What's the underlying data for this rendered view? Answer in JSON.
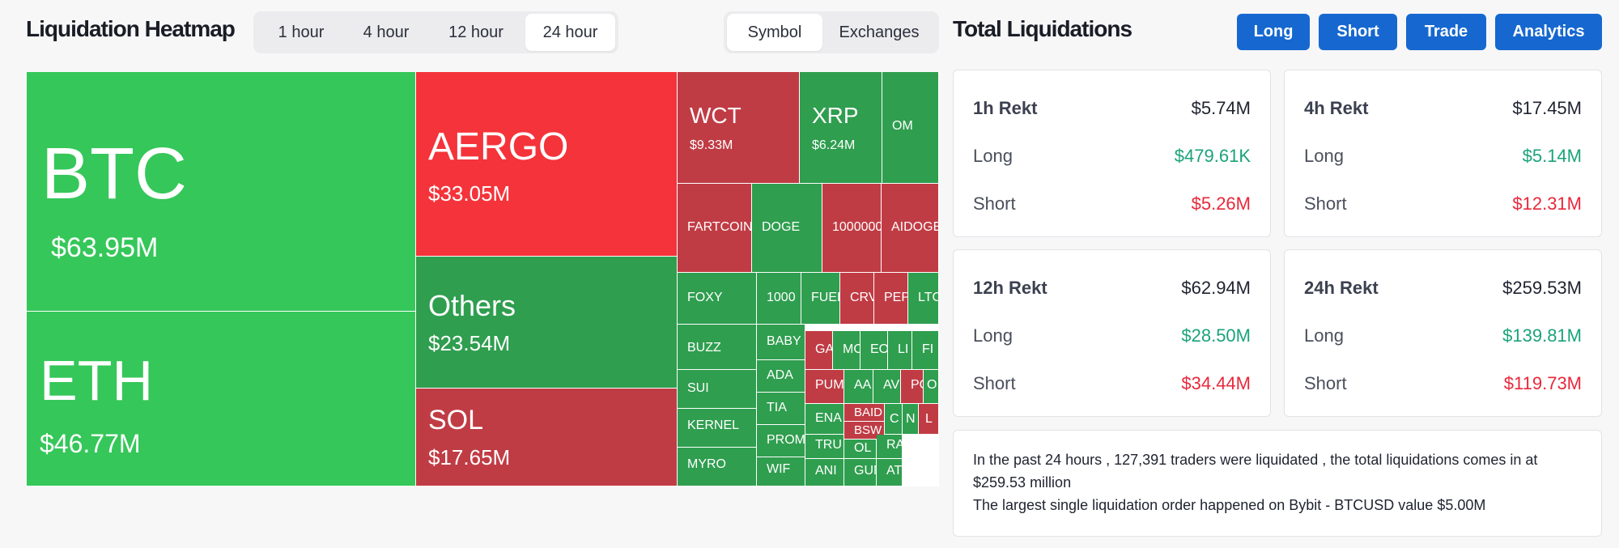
{
  "header": {
    "title": "Liquidation Heatmap"
  },
  "time_tabs": [
    {
      "label": "1 hour",
      "active": false
    },
    {
      "label": "4 hour",
      "active": false
    },
    {
      "label": "12 hour",
      "active": false
    },
    {
      "label": "24 hour",
      "active": true
    }
  ],
  "view_tabs": [
    {
      "label": "Symbol",
      "active": true
    },
    {
      "label": "Exchanges",
      "active": false
    }
  ],
  "colors": {
    "bright_green": "#35c759",
    "green": "#2f9e4f",
    "bright_red": "#f5333a",
    "red": "#c03c45",
    "button_blue": "#1668d0"
  },
  "heatmap": {
    "tiles": [
      {
        "name": "BTC",
        "value": "$63.95M",
        "color": "bright_green"
      },
      {
        "name": "ETH",
        "value": "$46.77M",
        "color": "bright_green"
      },
      {
        "name": "AERGO",
        "value": "$33.05M",
        "color": "bright_red"
      },
      {
        "name": "Others",
        "value": "$23.54M",
        "color": "green"
      },
      {
        "name": "SOL",
        "value": "$17.65M",
        "color": "red"
      },
      {
        "name": "WCT",
        "value": "$9.33M",
        "color": "red"
      },
      {
        "name": "XRP",
        "value": "$6.24M",
        "color": "green"
      },
      {
        "name": "OM",
        "value": "",
        "color": "green"
      },
      {
        "name": "FARTCOIN",
        "value": "",
        "color": "red"
      },
      {
        "name": "DOGE",
        "value": "",
        "color": "green"
      },
      {
        "name": "1000000",
        "value": "",
        "color": "red"
      },
      {
        "name": "AIDOGE",
        "value": "",
        "color": "red"
      },
      {
        "name": "FOXY",
        "value": "",
        "color": "green"
      },
      {
        "name": "1000",
        "value": "",
        "color": "green"
      },
      {
        "name": "FUEL",
        "value": "",
        "color": "green"
      },
      {
        "name": "CRV",
        "value": "",
        "color": "red"
      },
      {
        "name": "PEPE",
        "value": "",
        "color": "red"
      },
      {
        "name": "LTC",
        "value": "",
        "color": "green"
      },
      {
        "name": "BUZZ",
        "value": "",
        "color": "green"
      },
      {
        "name": "BABY",
        "value": "",
        "color": "green"
      },
      {
        "name": "GA",
        "value": "",
        "color": "red"
      },
      {
        "name": "MO",
        "value": "",
        "color": "green"
      },
      {
        "name": "EO",
        "value": "",
        "color": "green"
      },
      {
        "name": "LI",
        "value": "",
        "color": "green"
      },
      {
        "name": "FI",
        "value": "",
        "color": "green"
      },
      {
        "name": "ADA",
        "value": "",
        "color": "green"
      },
      {
        "name": "SUI",
        "value": "",
        "color": "green"
      },
      {
        "name": "PUM",
        "value": "",
        "color": "red"
      },
      {
        "name": "AA",
        "value": "",
        "color": "green"
      },
      {
        "name": "AV",
        "value": "",
        "color": "green"
      },
      {
        "name": "PO",
        "value": "",
        "color": "red"
      },
      {
        "name": "O",
        "value": "",
        "color": "green"
      },
      {
        "name": "TIA",
        "value": "",
        "color": "green"
      },
      {
        "name": "KERNEL",
        "value": "",
        "color": "green"
      },
      {
        "name": "ENA",
        "value": "",
        "color": "green"
      },
      {
        "name": "BAID",
        "value": "",
        "color": "red"
      },
      {
        "name": "C",
        "value": "",
        "color": "green"
      },
      {
        "name": "N",
        "value": "",
        "color": "green"
      },
      {
        "name": "L",
        "value": "",
        "color": "red"
      },
      {
        "name": "PROM",
        "value": "",
        "color": "green"
      },
      {
        "name": "BSW",
        "value": "",
        "color": "red"
      },
      {
        "name": "TRU",
        "value": "",
        "color": "green"
      },
      {
        "name": "OL",
        "value": "",
        "color": "green"
      },
      {
        "name": "RA",
        "value": "",
        "color": "green"
      },
      {
        "name": "MYRO",
        "value": "",
        "color": "green"
      },
      {
        "name": "WIF",
        "value": "",
        "color": "green"
      },
      {
        "name": "ANI",
        "value": "",
        "color": "green"
      },
      {
        "name": "GUN",
        "value": "",
        "color": "green"
      },
      {
        "name": "AT",
        "value": "",
        "color": "green"
      }
    ]
  },
  "totals": {
    "title": "Total Liquidations",
    "buttons": [
      "Long",
      "Short",
      "Trade",
      "Analytics"
    ],
    "cards": [
      {
        "title": "1h Rekt",
        "total": "$5.74M",
        "long_label": "Long",
        "long": "$479.61K",
        "short_label": "Short",
        "short": "$5.26M"
      },
      {
        "title": "4h Rekt",
        "total": "$17.45M",
        "long_label": "Long",
        "long": "$5.14M",
        "short_label": "Short",
        "short": "$12.31M"
      },
      {
        "title": "12h Rekt",
        "total": "$62.94M",
        "long_label": "Long",
        "long": "$28.50M",
        "short_label": "Short",
        "short": "$34.44M"
      },
      {
        "title": "24h Rekt",
        "total": "$259.53M",
        "long_label": "Long",
        "long": "$139.81M",
        "short_label": "Short",
        "short": "$119.73M"
      }
    ],
    "summary_line1": "In the past 24 hours , 127,391 traders were liquidated , the total liquidations comes in at $259.53 million",
    "summary_line2": "The largest single liquidation order happened on Bybit - BTCUSD value $5.00M"
  }
}
